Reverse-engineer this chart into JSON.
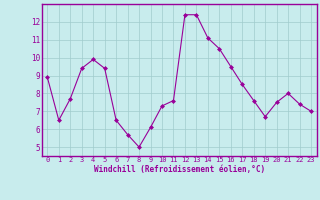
{
  "x": [
    0,
    1,
    2,
    3,
    4,
    5,
    6,
    7,
    8,
    9,
    10,
    11,
    12,
    13,
    14,
    15,
    16,
    17,
    18,
    19,
    20,
    21,
    22,
    23
  ],
  "y": [
    8.9,
    6.5,
    7.7,
    9.4,
    9.9,
    9.4,
    6.5,
    5.7,
    5.0,
    6.1,
    7.3,
    7.6,
    12.4,
    12.4,
    11.1,
    10.5,
    9.5,
    8.5,
    7.6,
    6.7,
    7.5,
    8.0,
    7.4,
    7.0
  ],
  "line_color": "#990099",
  "marker": "D",
  "marker_size": 2,
  "bg_color": "#c8eced",
  "grid_color": "#a0cccc",
  "xlabel": "Windchill (Refroidissement éolien,°C)",
  "xlabel_color": "#990099",
  "tick_color": "#990099",
  "spine_color": "#990099",
  "ylim": [
    4.5,
    13.0
  ],
  "xlim": [
    -0.5,
    23.5
  ],
  "yticks": [
    5,
    6,
    7,
    8,
    9,
    10,
    11,
    12
  ],
  "xticks": [
    0,
    1,
    2,
    3,
    4,
    5,
    6,
    7,
    8,
    9,
    10,
    11,
    12,
    13,
    14,
    15,
    16,
    17,
    18,
    19,
    20,
    21,
    22,
    23
  ],
  "figsize": [
    3.2,
    2.0
  ],
  "dpi": 100
}
